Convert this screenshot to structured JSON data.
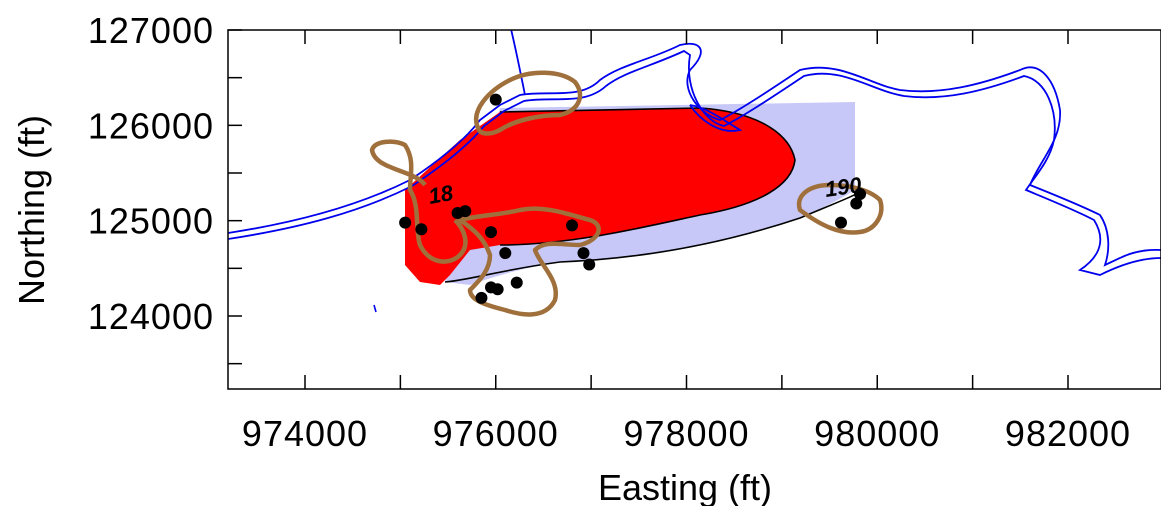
{
  "map": {
    "x_axis": {
      "title": "Easting (ft)",
      "ticks": [
        "974000",
        "976000",
        "978000",
        "980000",
        "982000"
      ],
      "range": [
        973200,
        983000
      ]
    },
    "y_axis": {
      "title": "Northing (ft)",
      "ticks": [
        "124000",
        "125000",
        "126000",
        "127000"
      ],
      "range": [
        123300,
        127000
      ]
    },
    "contour_labels": [
      "18",
      "190"
    ],
    "colors": {
      "plume_core": "#ff0000",
      "plume_halo": "#c8c8f8",
      "river": "#0000ee",
      "wetland_outline": "#a0703c",
      "wells": "#000000"
    },
    "wells": [
      {
        "e": 976000,
        "n": 126270
      },
      {
        "e": 975050,
        "n": 124980
      },
      {
        "e": 975220,
        "n": 124910
      },
      {
        "e": 975600,
        "n": 125080
      },
      {
        "e": 975680,
        "n": 125100
      },
      {
        "e": 975950,
        "n": 124880
      },
      {
        "e": 976100,
        "n": 124660
      },
      {
        "e": 975950,
        "n": 124300
      },
      {
        "e": 976020,
        "n": 124280
      },
      {
        "e": 975850,
        "n": 124190
      },
      {
        "e": 976220,
        "n": 124350
      },
      {
        "e": 976800,
        "n": 124950
      },
      {
        "e": 976920,
        "n": 124660
      },
      {
        "e": 976980,
        "n": 124540
      },
      {
        "e": 979620,
        "n": 124980
      },
      {
        "e": 979780,
        "n": 125180
      },
      {
        "e": 979820,
        "n": 125280
      }
    ]
  }
}
